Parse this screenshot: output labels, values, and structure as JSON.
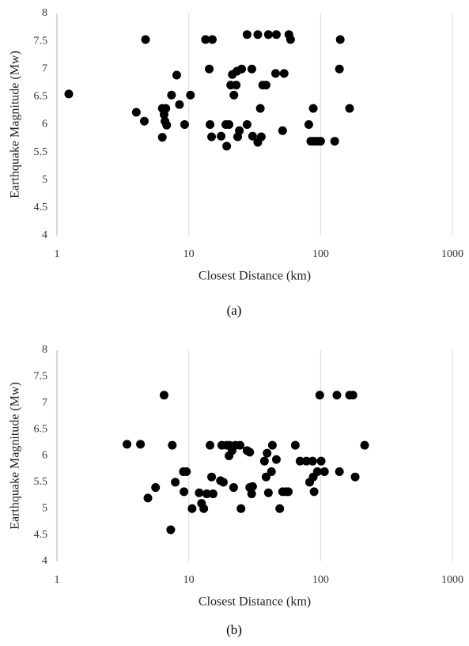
{
  "chart_data": [
    {
      "type": "scatter",
      "caption": "(a)",
      "x_label": "Closest Distance (km)",
      "y_label": "Earthquake Magnitude (Mw)",
      "x_log": true,
      "xgrid": true,
      "xlim": [
        1,
        1000
      ],
      "xticks": [
        1,
        10,
        100,
        1000
      ],
      "ylim": [
        4,
        8
      ],
      "yticks": [
        4,
        4.5,
        5,
        5.5,
        6,
        6.5,
        7,
        7.5,
        8
      ],
      "series": [
        {
          "color": "#000000",
          "x": [
            1.23,
            4.0,
            4.6,
            4.7,
            6.3,
            6.3,
            6.5,
            6.6,
            6.8,
            6.7,
            7.4,
            8.1,
            8.5,
            9.3,
            10.3,
            13.4,
            15.1,
            14.3,
            14.5,
            14.9,
            17.6,
            19.1,
            20.2,
            19.4,
            20.8,
            21.4,
            22.0,
            22.9,
            23.2,
            24.2,
            23.5,
            25.2,
            27.7,
            27.7,
            30.1,
            30.5,
            33.4,
            33.4,
            35.5,
            34.9,
            36.4,
            38.6,
            40.2,
            46.2,
            45.6,
            52.9,
            51.5,
            57.5,
            59.2,
            81.4,
            84.3,
            88.0,
            89.3,
            94.6,
            100,
            128,
            139,
            141,
            166
          ],
          "values": [
            6.55,
            6.22,
            6.06,
            7.53,
            5.77,
            6.29,
            6.18,
            6.06,
            5.99,
            6.29,
            6.53,
            6.89,
            6.36,
            6.0,
            6.53,
            7.53,
            7.53,
            7.0,
            6.0,
            5.78,
            5.79,
            6.0,
            6.0,
            5.61,
            6.71,
            6.9,
            6.53,
            6.71,
            6.96,
            5.89,
            5.78,
            7.0,
            7.62,
            6.0,
            7.0,
            5.79,
            7.62,
            5.68,
            5.78,
            6.29,
            6.71,
            6.71,
            7.62,
            7.62,
            6.92,
            6.92,
            5.89,
            7.62,
            7.53,
            6.0,
            5.7,
            6.29,
            5.7,
            5.7,
            5.7,
            5.7,
            7.0,
            7.53,
            6.29
          ]
        }
      ]
    },
    {
      "type": "scatter",
      "caption": "(b)",
      "x_label": "Closest Distance (km)",
      "y_label": "Earthquake Magnitude (Mw)",
      "x_log": true,
      "xgrid": true,
      "xlim": [
        1,
        1000
      ],
      "xticks": [
        1,
        10,
        100,
        1000
      ],
      "ylim": [
        4,
        8
      ],
      "yticks": [
        4,
        4.5,
        5,
        5.5,
        6,
        6.5,
        7,
        7.5,
        8
      ],
      "series": [
        {
          "color": "#000000",
          "x": [
            3.4,
            4.3,
            4.9,
            5.6,
            6.5,
            7.5,
            7.3,
            7.9,
            9.1,
            9.6,
            9.2,
            10.6,
            12,
            12.5,
            13,
            13.7,
            14.5,
            14.9,
            15.3,
            17.4,
            17.8,
            18.3,
            19.4,
            20.2,
            20.4,
            21.3,
            22.6,
            21.9,
            24.5,
            24.9,
            27.7,
            29,
            29,
            30,
            30.5,
            37.5,
            39.3,
            38.6,
            40.2,
            43.1,
            42.4,
            46.2,
            49,
            51.5,
            54.5,
            56.9,
            64.3,
            69.9,
            78.1,
            87,
            82.6,
            88,
            89.3,
            94.6,
            98.6,
            101,
            107,
            133,
            139,
            166,
            176,
            183,
            216
          ],
          "values": [
            6.22,
            6.22,
            5.2,
            5.4,
            7.15,
            6.2,
            4.6,
            5.5,
            5.7,
            5.7,
            5.32,
            5.0,
            5.3,
            5.1,
            5.0,
            5.28,
            6.2,
            5.6,
            5.28,
            5.53,
            6.2,
            5.5,
            6.2,
            6.0,
            6.2,
            6.1,
            6.2,
            5.4,
            6.2,
            5.0,
            6.1,
            6.07,
            5.4,
            5.28,
            5.42,
            5.9,
            6.05,
            5.6,
            5.3,
            6.2,
            5.7,
            5.93,
            5.0,
            5.32,
            5.32,
            5.32,
            6.2,
            5.9,
            5.9,
            5.9,
            5.5,
            5.6,
            5.32,
            5.7,
            7.15,
            5.9,
            5.7,
            7.15,
            5.7,
            7.15,
            7.15,
            5.6,
            6.2
          ]
        }
      ]
    }
  ]
}
